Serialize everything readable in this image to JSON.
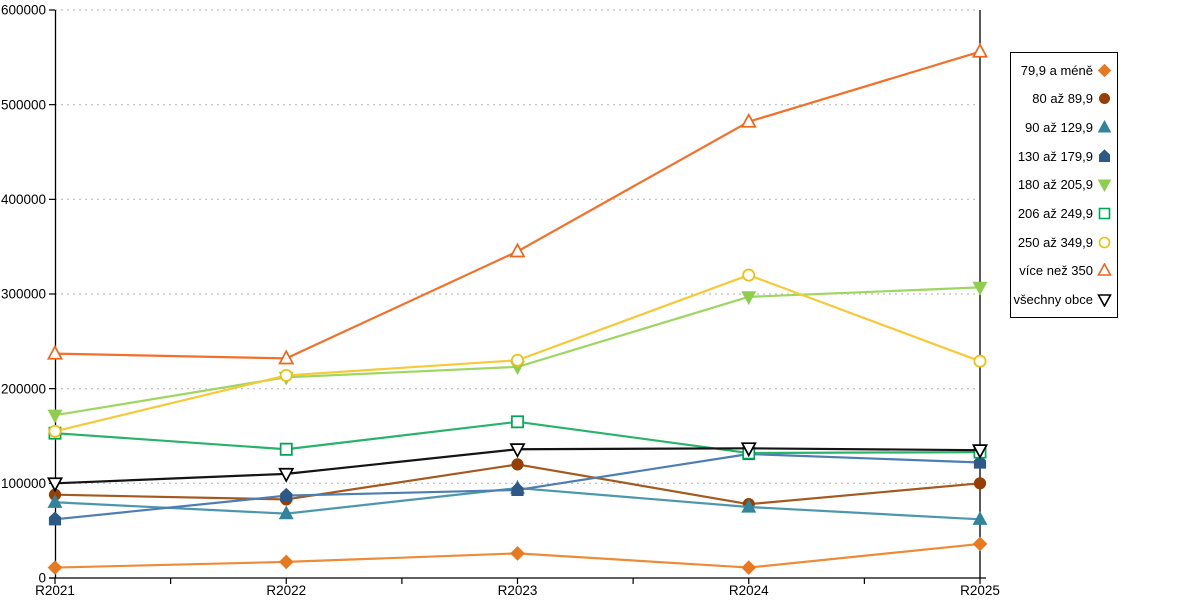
{
  "chart_data": {
    "type": "line",
    "title": "",
    "xlabel": "",
    "ylabel": "",
    "categories": [
      "R2021",
      "R2022",
      "R2023",
      "R2024",
      "R2025"
    ],
    "ylim": [
      0,
      600000
    ],
    "ytick_step": 100000,
    "y_tick_labels": [
      "0",
      "100000",
      "200000",
      "300000",
      "400000",
      "500000",
      "600000"
    ],
    "grid": "horizontal-dotted",
    "legend_position": "right",
    "series": [
      {
        "name": "79,9 a méně",
        "marker": "diamond",
        "fill": "solid",
        "color": "#E8791E",
        "line_color": "#EC8C39",
        "values": [
          11000,
          17000,
          26000,
          11000,
          36000
        ]
      },
      {
        "name": "80 až 89,9",
        "marker": "circle",
        "fill": "solid",
        "color": "#963F05",
        "line_color": "#A4591F",
        "values": [
          88000,
          83000,
          120000,
          78000,
          100000
        ]
      },
      {
        "name": "90 až 129,9",
        "marker": "triangle-up",
        "fill": "solid",
        "color": "#31849B",
        "line_color": "#4D97AC",
        "values": [
          80000,
          68000,
          95000,
          75000,
          62000
        ]
      },
      {
        "name": "130 až 179,9",
        "marker": "pentagon",
        "fill": "solid",
        "color": "#2D5986",
        "line_color": "#4E7DB2",
        "values": [
          62000,
          87000,
          93000,
          131000,
          122000
        ]
      },
      {
        "name": "180 až 205,9",
        "marker": "triangle-down",
        "fill": "solid",
        "color": "#8DCF4D",
        "line_color": "#9ED661",
        "values": [
          172000,
          212000,
          223000,
          297000,
          307000
        ]
      },
      {
        "name": "206 až 249,9",
        "marker": "square",
        "fill": "hollow",
        "color": "#00A455",
        "line_color": "#29B26A",
        "values": [
          153000,
          136000,
          165000,
          132000,
          133000
        ]
      },
      {
        "name": "250 až 349,9",
        "marker": "circle",
        "fill": "hollow",
        "color": "#F1BD0B",
        "line_color": "#F5C937",
        "values": [
          155000,
          214000,
          230000,
          320000,
          229000
        ]
      },
      {
        "name": "více než 350",
        "marker": "triangle-up",
        "fill": "hollow",
        "color": "#F06418",
        "line_color": "#F3702A",
        "values": [
          237000,
          232000,
          345000,
          482000,
          556000
        ]
      },
      {
        "name": "všechny obce",
        "marker": "triangle-down",
        "fill": "hollow",
        "color": "#000000",
        "line_color": "#141414",
        "values": [
          100000,
          110000,
          136000,
          137000,
          135000
        ]
      }
    ],
    "axis_color": "#000000",
    "gridline_color": "#BDBDBD"
  }
}
